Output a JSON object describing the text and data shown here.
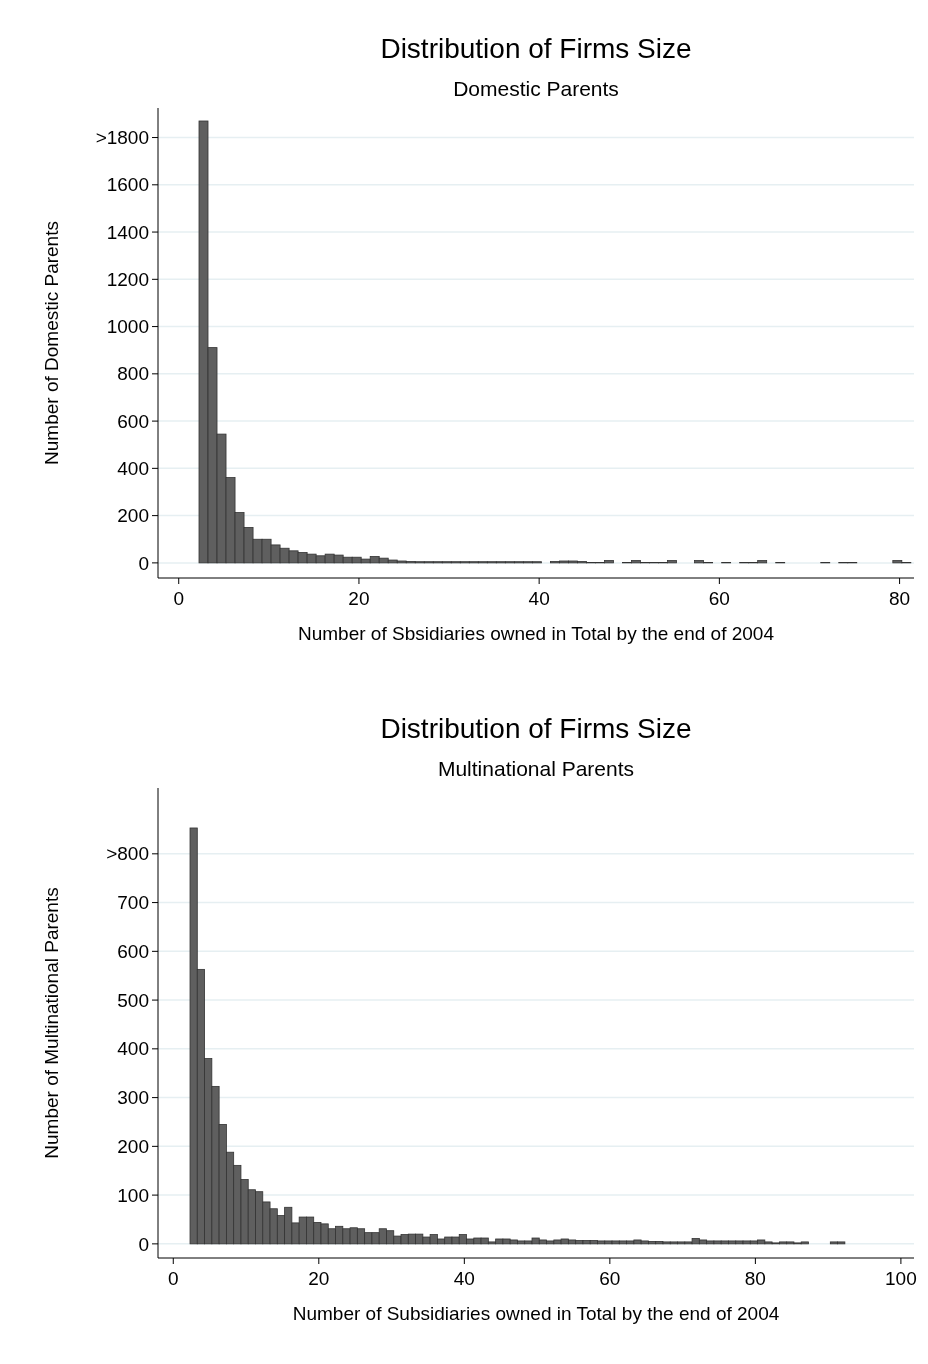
{
  "chart_data": [
    {
      "type": "histogram",
      "title": "Distribution of Firms Size",
      "subtitle": "Domestic Parents",
      "xlabel": "Number of Sbsidiaries owned in Total by the end of 2004",
      "ylabel": "Number of Domestic Parents",
      "color": "#5f5f5f",
      "bins": [
        2.25,
        3.25,
        4.25,
        5.25,
        6.25,
        7.25,
        8.25,
        9.25,
        10.25,
        11.25,
        12.25,
        13.25,
        14.25,
        15.25,
        16.25,
        17.25,
        18.25,
        19.25,
        20.25,
        21.25,
        22.25,
        23.25,
        24.25,
        25.25,
        26.25,
        27.25,
        28.25,
        29.25,
        30.25,
        31.25,
        32.25,
        33.25,
        34.25,
        35.25,
        36.25,
        37.25,
        38.25,
        39.25,
        40.25,
        41.25,
        42.25,
        43.25,
        44.25,
        45.25,
        46.25,
        47.25,
        48.25,
        49.25,
        50.25,
        51.25,
        52.25,
        53.25,
        54.25,
        55.25,
        56.25,
        57.25,
        58.25,
        59.25,
        60.25,
        61.25,
        62.25,
        63.25,
        64.25,
        65.25,
        66.25,
        67.25,
        68.25,
        69.25,
        70.25,
        71.25,
        72.25,
        73.25,
        74.25,
        75.25,
        76.25,
        77.25,
        78.25,
        79.25,
        80.25,
        81.25
      ],
      "values": [
        1870,
        911,
        545,
        361,
        213,
        150,
        100,
        100,
        76,
        62,
        51,
        44,
        37,
        30,
        37,
        33,
        24,
        24,
        16,
        27,
        20,
        12,
        8,
        6,
        5,
        5,
        5,
        5,
        5,
        5,
        5,
        5,
        5,
        5,
        5,
        5,
        5,
        5,
        0,
        6,
        8,
        8,
        6,
        2,
        2,
        10,
        0,
        2,
        10,
        2,
        2,
        2,
        10,
        0,
        0,
        10,
        2,
        0,
        2,
        0,
        2,
        2,
        10,
        0,
        2,
        0,
        0,
        0,
        0,
        2,
        0,
        2,
        2,
        0,
        0,
        0,
        0,
        10,
        2
      ],
      "xlim": [
        -2.3,
        81.6
      ],
      "ylim": [
        -64,
        1925
      ],
      "xticks": [
        0,
        20,
        40,
        60,
        80
      ],
      "yticks": [
        0,
        200,
        400,
        600,
        800,
        1000,
        1200,
        1400,
        1600,
        {
          "value": 1800,
          "label": ">1800"
        }
      ],
      "grid": "y"
    },
    {
      "type": "histogram",
      "title": "Distribution of Firms Size",
      "subtitle": "Multinational Parents",
      "xlabel": "Number of Subsidiaries owned in Total by the end of 2004",
      "ylabel": "Number of Multinational Parents",
      "color": "#5f5f5f",
      "bins": [
        2.3,
        3.3,
        4.3,
        5.3,
        6.3,
        7.3,
        8.3,
        9.3,
        10.3,
        11.3,
        12.3,
        13.3,
        14.3,
        15.3,
        16.3,
        17.3,
        18.3,
        19.3,
        20.3,
        21.3,
        22.3,
        23.3,
        24.3,
        25.3,
        26.3,
        27.3,
        28.3,
        29.3,
        30.3,
        31.3,
        32.3,
        33.3,
        34.3,
        35.3,
        36.3,
        37.3,
        38.3,
        39.3,
        40.3,
        41.3,
        42.3,
        43.3,
        44.3,
        45.3,
        46.3,
        47.3,
        48.3,
        49.3,
        50.3,
        51.3,
        52.3,
        53.3,
        54.3,
        55.3,
        56.3,
        57.3,
        58.3,
        59.3,
        60.3,
        61.3,
        62.3,
        63.3,
        64.3,
        65.3,
        66.3,
        67.3,
        68.3,
        69.3,
        70.3,
        71.3,
        72.3,
        73.3,
        74.3,
        75.3,
        76.3,
        77.3,
        78.3,
        79.3,
        80.3,
        81.3,
        82.3,
        83.3,
        84.3,
        85.3,
        86.3,
        87.3,
        88.3,
        89.3,
        90.3,
        91.3,
        92.3
      ],
      "values": [
        853,
        563,
        380,
        323,
        245,
        188,
        161,
        132,
        111,
        107,
        86,
        72,
        58,
        75,
        43,
        55,
        55,
        44,
        41,
        31,
        36,
        31,
        33,
        31,
        23,
        23,
        31,
        27,
        16,
        19,
        20,
        20,
        14,
        19,
        10,
        14,
        14,
        19,
        10,
        12,
        12,
        4,
        10,
        10,
        8,
        6,
        6,
        12,
        8,
        6,
        8,
        10,
        8,
        7,
        7,
        7,
        6,
        6,
        6,
        6,
        6,
        8,
        6,
        5,
        5,
        4,
        4,
        4,
        4,
        11,
        8,
        6,
        6,
        6,
        6,
        6,
        6,
        6,
        8,
        4,
        2,
        4,
        4,
        2,
        4,
        0,
        0,
        0,
        4,
        4
      ],
      "xlim": [
        -2.1,
        101.8
      ],
      "ylim": [
        -29,
        935
      ],
      "xticks": [
        0,
        20,
        40,
        60,
        80,
        100
      ],
      "yticks": [
        0,
        100,
        200,
        300,
        400,
        500,
        600,
        700,
        {
          "value": 800,
          "label": ">800"
        }
      ],
      "grid": "y"
    }
  ]
}
